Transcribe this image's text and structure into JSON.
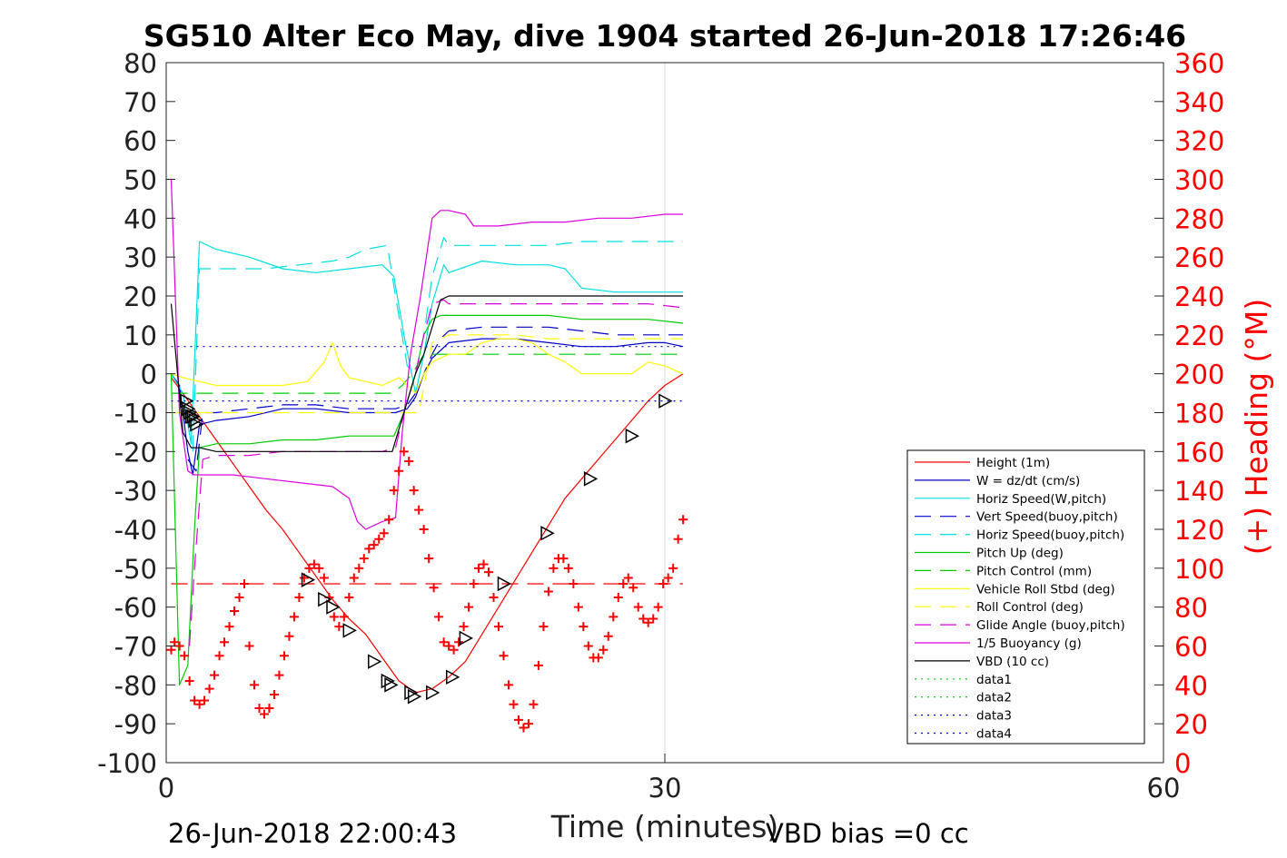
{
  "chart_data": {
    "type": "line",
    "title": "SG510 Alter Eco May, dive 1904 started 26-Jun-2018 17:26:46",
    "xlabel": "Time (minutes)",
    "ylabel_right": "(+) Heading (°M)",
    "footer_left": "26-Jun-2018 22:00:43",
    "footer_right": "VBD bias =0 cc",
    "xlim": [
      0,
      60
    ],
    "ylim": [
      -100,
      80
    ],
    "ylim_right": [
      0,
      360
    ],
    "xticks": [
      0,
      30,
      60
    ],
    "yticks": [
      80,
      70,
      60,
      50,
      40,
      30,
      20,
      10,
      0,
      -10,
      -20,
      -30,
      -40,
      -50,
      -60,
      -70,
      -80,
      -90,
      -100
    ],
    "yticks_right": [
      360,
      340,
      320,
      300,
      280,
      260,
      240,
      220,
      200,
      180,
      160,
      140,
      120,
      100,
      80,
      60,
      40,
      20,
      0
    ],
    "grid": "x-only",
    "legend_position": "bottom-right",
    "colors": {
      "red": "#ff0000",
      "blue": "#0000cc",
      "cyan": "#00e0e0",
      "green": "#00cc00",
      "yellow": "#ffff00",
      "magenta": "#dd00dd",
      "black": "#000000"
    },
    "series": [
      {
        "name": "Height (1m)",
        "color": "#ff0000",
        "style": "solid",
        "x": [
          0.3,
          1,
          2,
          3,
          4,
          5,
          6,
          7,
          8,
          9,
          10,
          11,
          12,
          13,
          14,
          15,
          16,
          17,
          18,
          19,
          20,
          21,
          22,
          23,
          24,
          25,
          26,
          27,
          28,
          29,
          30,
          31.1
        ],
        "y": [
          -1,
          -5,
          -11,
          -17,
          -23,
          -29,
          -35,
          -40,
          -46,
          -52,
          -58,
          -63,
          -67,
          -73,
          -79,
          -82,
          -81,
          -78,
          -74,
          -67,
          -60,
          -53,
          -46,
          -39,
          -32,
          -27,
          -22,
          -17,
          -12,
          -7,
          -3,
          0
        ]
      },
      {
        "name": "W = dz/dt (cm/s)",
        "color": "#0000cc",
        "style": "solid",
        "x": [
          0.3,
          0.8,
          1.3,
          1.6,
          2,
          3,
          5,
          7,
          9,
          11,
          13,
          13.8,
          14.5,
          15,
          15.5,
          16,
          16.5,
          17,
          19,
          21,
          23,
          25,
          27,
          29,
          30,
          31.1
        ],
        "y": [
          0,
          -3,
          -20,
          -26,
          -13,
          -12,
          -11,
          -9,
          -9,
          -10,
          -10,
          -10,
          -9,
          -6,
          0,
          4,
          6,
          8,
          9,
          9,
          8,
          7,
          7,
          8,
          8,
          7
        ]
      },
      {
        "name": "Horiz Speed(W,pitch)",
        "color": "#00e0e0",
        "style": "solid",
        "x": [
          0.3,
          1,
          1.5,
          2,
          3,
          5,
          7,
          9,
          11,
          13,
          13.7,
          14.3,
          15,
          15.5,
          16,
          16.7,
          17,
          19,
          21,
          23,
          24,
          25,
          27,
          29,
          31.1
        ],
        "y": [
          0,
          -5,
          -18,
          34,
          32,
          30,
          27,
          26,
          27,
          28,
          25,
          10,
          -5,
          5,
          18,
          28,
          26,
          29,
          28,
          28,
          27,
          22,
          21,
          21,
          21
        ]
      },
      {
        "name": "Vert Speed(buoy,pitch)",
        "color": "#0000cc",
        "style": "dashed",
        "x": [
          1.3,
          1.8,
          2.2,
          3,
          5,
          7,
          9,
          11,
          13,
          13.8,
          14.5,
          15,
          15.5,
          16,
          16.5,
          17,
          19,
          21,
          23,
          25,
          27,
          29,
          31.1
        ],
        "y": [
          -22,
          -25,
          -10,
          -10,
          -9,
          -8,
          -8,
          -9,
          -9,
          -9,
          -8,
          -5,
          0,
          5,
          9,
          11,
          12,
          12,
          12,
          11,
          10,
          10,
          10
        ]
      },
      {
        "name": "Horiz Speed(buoy,pitch)",
        "color": "#00e0e0",
        "style": "dashed",
        "x": [
          1.6,
          2,
          4,
          6,
          8,
          10,
          11,
          12,
          13.3,
          13.8,
          14.5,
          15,
          15.5,
          16,
          16.7,
          17,
          19,
          21,
          23,
          25,
          27,
          29,
          31.1
        ],
        "y": [
          -20,
          27,
          27,
          27,
          28,
          29,
          30,
          32,
          33,
          20,
          2,
          0,
          10,
          25,
          35,
          33,
          33,
          33,
          33,
          34,
          34,
          34,
          34
        ]
      },
      {
        "name": "Pitch Up (deg)",
        "color": "#00cc00",
        "style": "solid",
        "x": [
          0.3,
          0.8,
          1.3,
          1.7,
          2,
          3,
          5,
          7,
          9,
          11,
          13,
          13.7,
          14.3,
          15,
          15.5,
          16,
          16.5,
          17,
          19,
          21,
          23,
          25,
          27,
          29,
          31.1
        ],
        "y": [
          0,
          -80,
          -75,
          -40,
          -19,
          -18,
          -18,
          -17,
          -17,
          -16,
          -16,
          -16,
          -10,
          0,
          10,
          14,
          15,
          15,
          15,
          15,
          15,
          14,
          14,
          14,
          13
        ]
      },
      {
        "name": "Pitch Control (mm)",
        "color": "#00cc00",
        "style": "dashed",
        "x": [
          0.3,
          2,
          4,
          6,
          8,
          10,
          12,
          13.6,
          14.2,
          14.8,
          15.5,
          16.5,
          18,
          20,
          22,
          24,
          26,
          28,
          30,
          31.1
        ],
        "y": [
          -5,
          -5,
          -5,
          -5,
          -5,
          -5,
          -5,
          -5,
          -3,
          0,
          5,
          5,
          5,
          5,
          5,
          5,
          5,
          5,
          5,
          5
        ]
      },
      {
        "name": "Vehicle Roll Stbd (deg)",
        "color": "#ffff00",
        "style": "solid",
        "x": [
          0.3,
          1,
          2,
          3,
          5,
          7,
          8.5,
          9.5,
          10,
          10.5,
          11,
          12,
          13,
          14,
          14.5,
          15,
          15.5,
          16,
          17,
          18,
          19,
          20,
          21,
          22,
          23,
          24,
          25,
          26,
          27,
          28,
          29,
          30,
          31.1
        ],
        "y": [
          0,
          -1,
          -2,
          -3,
          -3,
          -3,
          -2,
          3,
          8,
          2,
          -1,
          -2,
          -3,
          -1,
          -3,
          -5,
          0,
          3,
          5,
          5,
          8,
          9,
          9,
          8,
          5,
          3,
          0,
          0,
          0,
          0,
          3,
          2,
          0
        ]
      },
      {
        "name": "Roll Control (deg)",
        "color": "#ffff00",
        "style": "dashed",
        "x": [
          0.3,
          2,
          4,
          6,
          8,
          10,
          12,
          13.6,
          14.5,
          15.2,
          16,
          17,
          19,
          21,
          23,
          25,
          27,
          29,
          31.1
        ],
        "y": [
          -10,
          -10,
          -10,
          -10,
          -10,
          -10,
          -10,
          -10,
          -10,
          -10,
          8,
          10,
          10,
          10,
          9,
          9,
          9,
          9,
          9
        ]
      },
      {
        "name": "Glide Angle (buoy,pitch)",
        "color": "#dd00dd",
        "style": "dashed",
        "x": [
          1.4,
          1.7,
          2.2,
          3,
          5,
          7,
          9,
          11,
          13,
          13.8,
          14.3,
          15,
          15.5,
          16,
          16.7,
          17,
          19,
          21,
          23,
          25,
          27,
          29,
          31.1
        ],
        "y": [
          -70,
          -50,
          -22,
          -21,
          -21,
          -20,
          -20,
          -20,
          -20,
          -19,
          -10,
          0,
          10,
          18,
          19,
          18,
          18,
          18,
          18,
          18,
          18,
          18,
          17
        ]
      },
      {
        "name": "1/5 Buoyancy (g)",
        "color": "#dd00dd",
        "style": "solid",
        "x": [
          0.3,
          0.8,
          1.3,
          1.7,
          2,
          4,
          6,
          8,
          10,
          11,
          11.5,
          12,
          13,
          13.8,
          14.2,
          14.7,
          15.3,
          16,
          16.5,
          17,
          18,
          18.5,
          20,
          22,
          24,
          26,
          28,
          30,
          31.1
        ],
        "y": [
          50,
          -10,
          -25,
          -26,
          -26,
          -26,
          -27,
          -28,
          -29,
          -32,
          -38,
          -40,
          -38,
          -37,
          -15,
          5,
          20,
          40,
          42,
          42,
          41,
          38,
          38,
          39,
          39,
          40,
          40,
          41,
          41
        ]
      },
      {
        "name": "VBD (10 cc)",
        "color": "#000000",
        "style": "solid",
        "x": [
          0.3,
          1,
          1.5,
          2,
          3,
          5,
          7,
          9,
          11,
          13,
          13.6,
          14.3,
          15,
          15.5,
          16,
          16.5,
          17,
          18,
          20,
          22,
          24,
          26,
          28,
          30,
          31.1
        ],
        "y": [
          18,
          -15,
          -19,
          -19,
          -20,
          -20,
          -20,
          -20,
          -20,
          -20,
          -20,
          -10,
          0,
          5,
          12,
          19,
          20,
          20,
          20,
          20,
          20,
          20,
          20,
          20,
          20
        ]
      },
      {
        "name": "data1",
        "color": "#00cc00",
        "style": "dotted",
        "x": [],
        "y": []
      },
      {
        "name": "data2",
        "color": "#00cc00",
        "style": "dotted",
        "x": [],
        "y": []
      },
      {
        "name": "data3",
        "color": "#0000cc",
        "style": "dotted",
        "x": [
          0.3,
          31.1
        ],
        "y": [
          7,
          7
        ]
      },
      {
        "name": "data4",
        "color": "#0000cc",
        "style": "dotted",
        "x": [
          0.3,
          31.1
        ],
        "y": [
          -7,
          -7
        ]
      }
    ],
    "reference_lines": [
      {
        "style": "dashed",
        "color": "#ff0000",
        "x": [
          0.3,
          31.1
        ],
        "y": [
          -54,
          -54
        ]
      }
    ],
    "heading_points": {
      "color": "#ff0000",
      "marker": "+",
      "x": [
        0.3,
        0.5,
        0.8,
        1.1,
        1.4,
        1.7,
        2,
        2.3,
        2.6,
        2.9,
        3.2,
        3.5,
        3.8,
        4.1,
        4.4,
        4.7,
        5,
        5.3,
        5.6,
        5.9,
        6.2,
        6.5,
        6.8,
        7.1,
        7.4,
        7.7,
        8,
        8.3,
        8.6,
        8.9,
        9.2,
        9.5,
        9.8,
        10.1,
        10.4,
        10.7,
        11,
        11.3,
        11.6,
        11.9,
        12.2,
        12.5,
        12.8,
        13.1,
        13.4,
        13.7,
        14,
        14.3,
        14.6,
        14.9,
        15.2,
        15.5,
        15.8,
        16.1,
        16.4,
        16.7,
        17,
        17.3,
        17.6,
        17.9,
        18.2,
        18.5,
        18.8,
        19.1,
        19.4,
        19.7,
        20,
        20.3,
        20.6,
        20.9,
        21.2,
        21.5,
        21.8,
        22.1,
        22.4,
        22.7,
        23,
        23.3,
        23.6,
        23.9,
        24.2,
        24.5,
        24.8,
        25.1,
        25.4,
        25.7,
        26,
        26.3,
        26.6,
        26.9,
        27.2,
        27.5,
        27.8,
        28.1,
        28.4,
        28.7,
        29,
        29.3,
        29.6,
        29.9,
        30.2,
        30.5,
        30.8,
        31.1
      ],
      "y": [
        58,
        62,
        60,
        55,
        42,
        32,
        30,
        32,
        38,
        45,
        55,
        62,
        70,
        78,
        85,
        92,
        60,
        40,
        28,
        25,
        28,
        35,
        45,
        55,
        65,
        75,
        85,
        95,
        100,
        102,
        100,
        95,
        85,
        75,
        70,
        75,
        85,
        95,
        100,
        105,
        110,
        112,
        115,
        118,
        125,
        140,
        150,
        160,
        155,
        140,
        130,
        120,
        105,
        90,
        75,
        62,
        60,
        58,
        62,
        70,
        80,
        92,
        100,
        102,
        98,
        85,
        70,
        55,
        40,
        30,
        22,
        18,
        20,
        30,
        50,
        70,
        88,
        100,
        105,
        105,
        100,
        92,
        80,
        70,
        60,
        54,
        54,
        58,
        65,
        75,
        85,
        92,
        95,
        90,
        80,
        74,
        72,
        74,
        80,
        92,
        95,
        100,
        115,
        125
      ]
    },
    "depth_markers": {
      "color": "#000000",
      "marker": "triangle-right",
      "x": [
        1.2,
        1.3,
        1.4,
        1.5,
        1.6,
        1.7,
        1.8,
        8.5,
        9.5,
        10,
        11,
        12.5,
        13.3,
        13.5,
        14.7,
        14.9,
        16,
        17.2,
        18,
        20.3,
        22.9,
        25.5,
        28,
        30
      ],
      "y": [
        -7,
        -9,
        -10,
        -11,
        -11,
        -12,
        -13,
        -53,
        -58,
        -60,
        -66,
        -74,
        -79,
        -80,
        -82,
        -83,
        -82,
        -78,
        -68,
        -54,
        -41,
        -27,
        -16,
        -7
      ]
    }
  }
}
